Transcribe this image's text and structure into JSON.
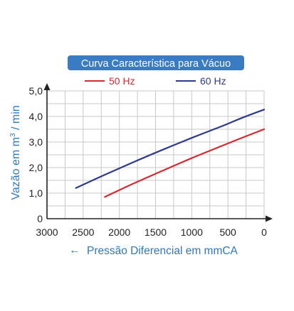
{
  "chart_data": {
    "type": "line",
    "title": "Curva Característica para Vácuo",
    "ylabel_prefix": "Vazão em m",
    "ylabel_sup": "3",
    "ylabel_suffix": " / min",
    "xlabel_arrow": "←",
    "xlabel": "Pressão Diferencial em mmCA",
    "x_ticks": [
      "3000",
      "2500",
      "2000",
      "1500",
      "1000",
      "500",
      "0"
    ],
    "y_ticks": [
      "0",
      "1,0",
      "2,0",
      "3,0",
      "4,0",
      "5,0"
    ],
    "xlim": [
      3000,
      0
    ],
    "ylim": [
      0,
      5
    ],
    "x_reversed": true,
    "grid": true,
    "legend_position": "top",
    "series": [
      {
        "name": "50 Hz",
        "color": "#d42a30",
        "x": [
          2200,
          1800,
          1400,
          1000,
          600,
          300,
          0
        ],
        "y": [
          0.85,
          1.38,
          1.88,
          2.37,
          2.83,
          3.17,
          3.5
        ]
      },
      {
        "name": "60 Hz",
        "color": "#2e3a8c",
        "x": [
          2600,
          2200,
          1800,
          1400,
          1000,
          600,
          300,
          0
        ],
        "y": [
          1.2,
          1.72,
          2.22,
          2.7,
          3.16,
          3.6,
          3.95,
          4.27
        ]
      }
    ],
    "colors": {
      "title_bg": "#3a7cc4",
      "title_text": "#ffffff",
      "ylabel": "#2e78be",
      "xlabel": "#2e78be",
      "axis": "#222222",
      "grid": "#c8c8c8"
    }
  }
}
